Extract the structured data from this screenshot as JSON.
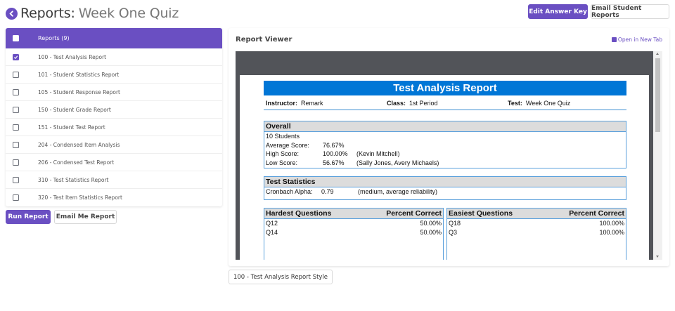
{
  "header": {
    "title_strong": "Reports:",
    "title_light": "Week One Quiz",
    "back_icon": "circle-arrow-left-icon",
    "buttons": {
      "edit_answer_key": "Edit Answer Key",
      "email_student_reports": "Email Student Reports"
    }
  },
  "colors": {
    "accent": "#6a4fc2",
    "report_blue": "#0076d6",
    "viewer_bg": "#525459"
  },
  "report_list": {
    "header_label": "Reports (9)",
    "items": [
      {
        "label": "100 - Test Analysis Report",
        "checked": true
      },
      {
        "label": "101 - Student Statistics Report",
        "checked": false
      },
      {
        "label": "105 - Student Response Report",
        "checked": false
      },
      {
        "label": "150 - Student Grade Report",
        "checked": false
      },
      {
        "label": "151 - Student Test Report",
        "checked": false
      },
      {
        "label": "204 - Condensed Item Analysis",
        "checked": false
      },
      {
        "label": "206 - Condensed Test Report",
        "checked": false
      },
      {
        "label": "310 - Test Statistics Report",
        "checked": false
      },
      {
        "label": "320 - Test Item Statistics Report",
        "checked": false
      }
    ],
    "run_report": "Run Report",
    "email_me_report": "Email Me Report"
  },
  "viewer": {
    "title": "Report Viewer",
    "open_new_tab": "Open in New Tab",
    "style_button": "100 - Test Analysis Report Style",
    "report": {
      "title": "Test Analysis Report",
      "instructor_label": "Instructor:",
      "instructor": "Remark",
      "class_label": "Class:",
      "class": "1st Period",
      "test_label": "Test:",
      "test": "Week One Quiz",
      "overall": {
        "heading": "Overall",
        "students": "10 Students",
        "avg_label": "Average Score:",
        "avg": "76.67%",
        "high_label": "High Score:",
        "high": "100.00%",
        "high_who": "(Kevin Mitchell)",
        "low_label": "Low Score:",
        "low": "56.67%",
        "low_who": "(Sally Jones, Avery Michaels)"
      },
      "test_statistics": {
        "heading": "Test Statistics",
        "alpha_label": "Cronbach Alpha:",
        "alpha": "0.79",
        "alpha_note": "(medium, average reliability)"
      },
      "hardest": {
        "heading": "Hardest Questions",
        "col": "Percent Correct",
        "rows": [
          {
            "q": "Q12",
            "pct": "50.00%"
          },
          {
            "q": "Q14",
            "pct": "50.00%"
          }
        ]
      },
      "easiest": {
        "heading": "Easiest Questions",
        "col": "Percent Correct",
        "rows": [
          {
            "q": "Q18",
            "pct": "100.00%"
          },
          {
            "q": "Q3",
            "pct": "100.00%"
          }
        ]
      }
    }
  }
}
